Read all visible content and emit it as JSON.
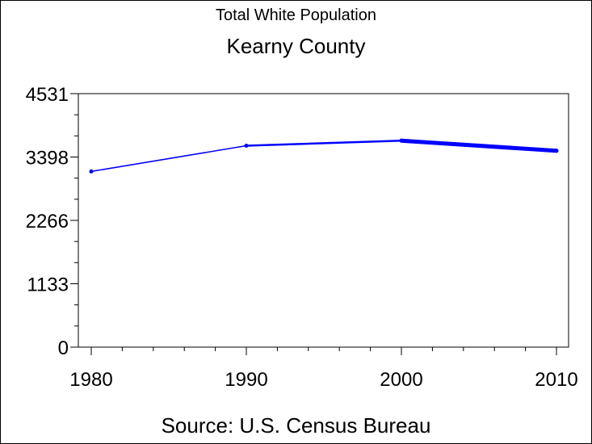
{
  "chart_data": {
    "type": "line",
    "title": "Total White Population",
    "subtitle": "Kearny County",
    "footnote": "Source: U.S. Census Bureau",
    "x": [
      1980,
      1990,
      2000,
      2010
    ],
    "series": [
      {
        "values": [
          3140,
          3600,
          3690,
          3510
        ]
      }
    ],
    "xlim": [
      1980,
      2010
    ],
    "ylim": [
      0,
      4531
    ],
    "x_tick_labels": [
      "1980",
      "1990",
      "2000",
      "2010"
    ],
    "y_tick_labels": [
      "0",
      "1133",
      "2266",
      "3398",
      "4531"
    ],
    "y_ticks": [
      0,
      1133,
      2266,
      3398,
      4531
    ],
    "line_color": "#0000ff",
    "grid": false
  }
}
